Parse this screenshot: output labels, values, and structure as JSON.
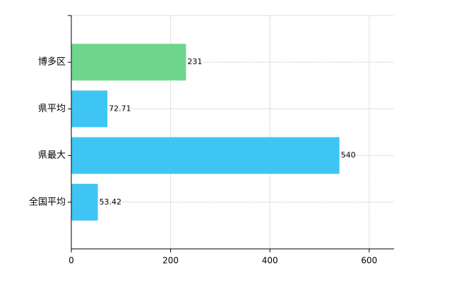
{
  "chart_data": {
    "type": "barh",
    "categories": [
      "博多区",
      "県平均",
      "県最大",
      "全国平均"
    ],
    "values": [
      231,
      72.71,
      540,
      53.42
    ],
    "colors": [
      "#6dd68c",
      "#3fc5f3",
      "#3fc5f3",
      "#3fc5f3"
    ],
    "xlim": [
      0,
      650
    ],
    "xticks": [
      0,
      200,
      400,
      600
    ],
    "grid": true
  }
}
